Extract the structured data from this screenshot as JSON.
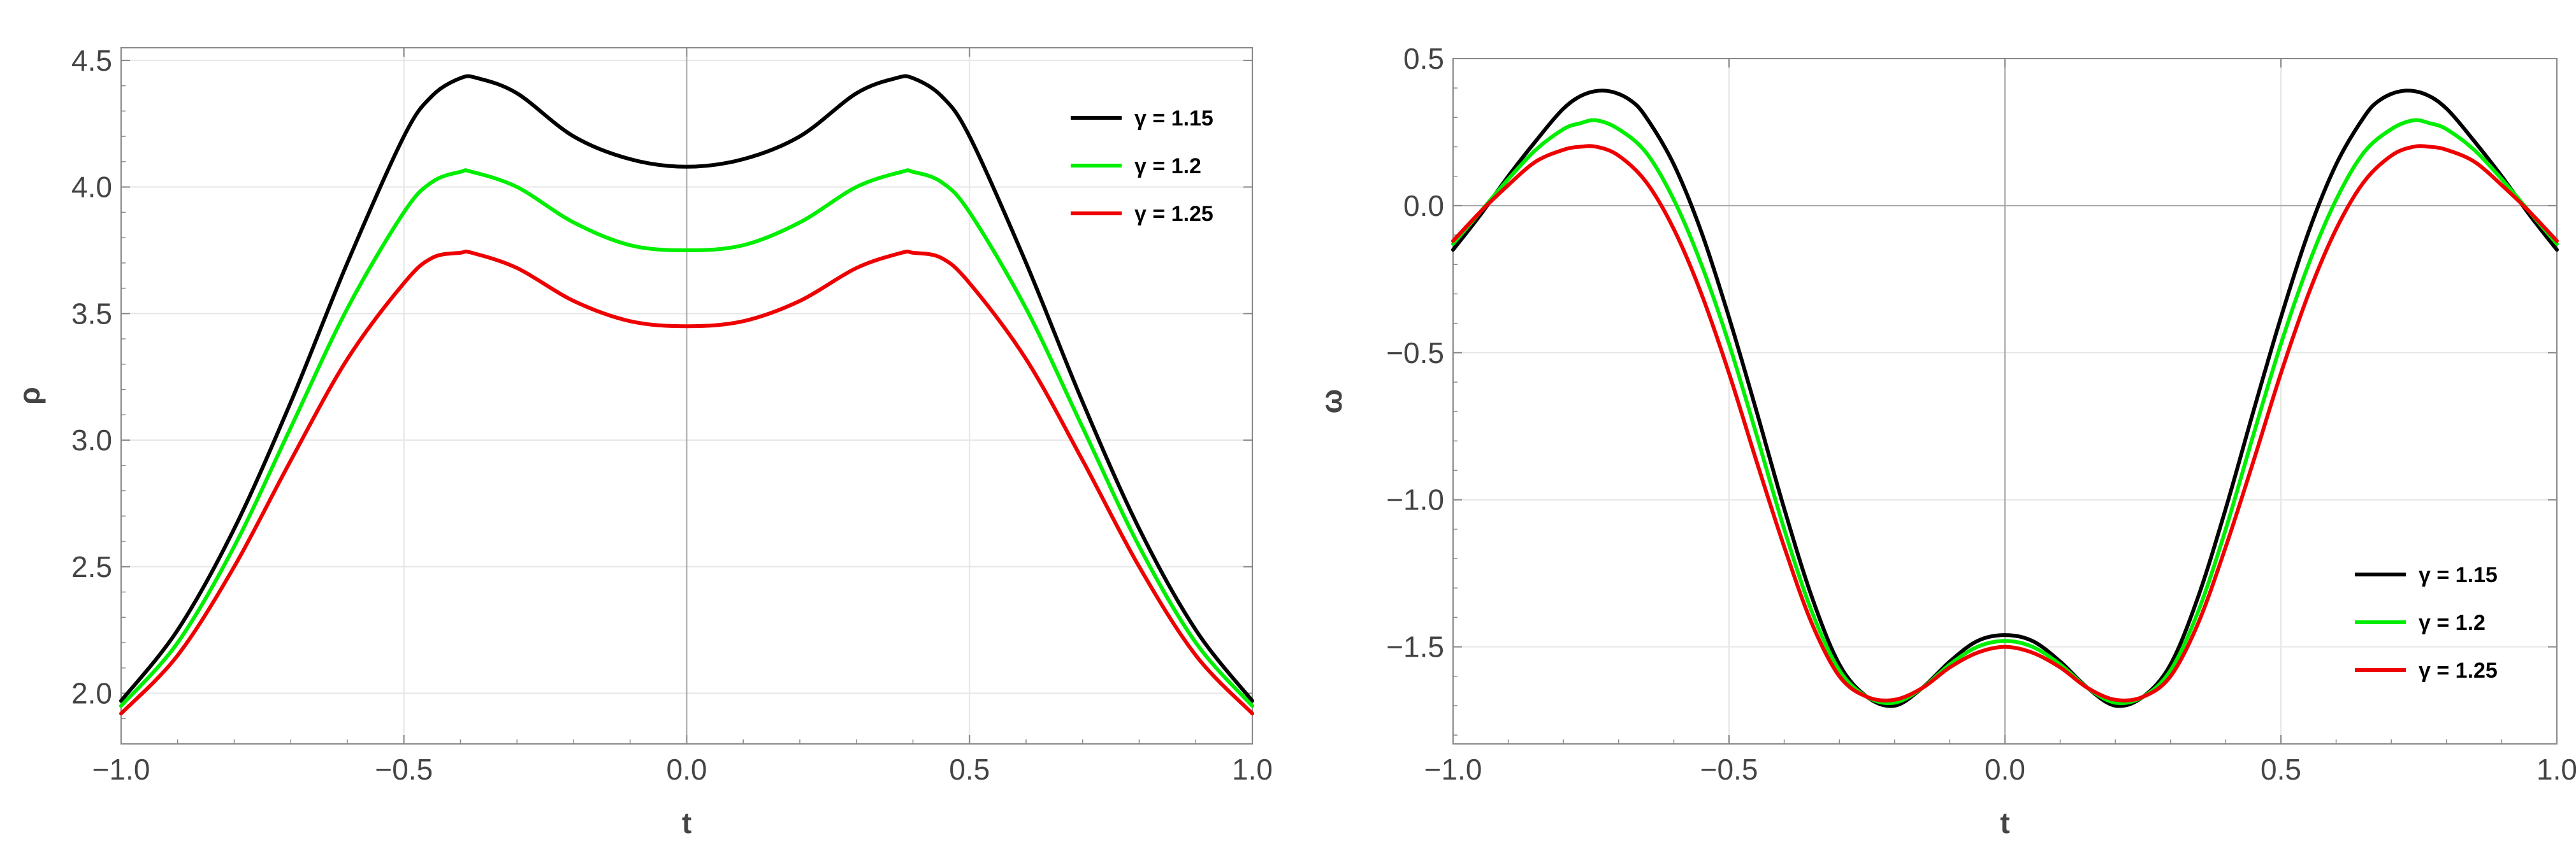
{
  "chart_data": [
    {
      "type": "line",
      "title": "",
      "xlabel": "t",
      "ylabel": "ρ",
      "xlim": [
        -1.0,
        1.0
      ],
      "ylim": [
        1.8,
        4.55
      ],
      "xticks": [
        "−1.0",
        "−0.5",
        "0.0",
        "0.5",
        "1.0"
      ],
      "yticks": [
        "2.0",
        "2.5",
        "3.0",
        "3.5",
        "4.0",
        "4.5"
      ],
      "grid": true,
      "legend_position": "top-right",
      "series": [
        {
          "name": "γ = 1.15",
          "color": "#000000",
          "x": [
            -1.0,
            -0.9,
            -0.8,
            -0.7,
            -0.6,
            -0.5,
            -0.45,
            -0.4,
            -0.37,
            -0.3,
            -0.2,
            -0.1,
            0.0,
            0.1,
            0.2,
            0.3,
            0.37,
            0.4,
            0.45,
            0.5,
            0.6,
            0.7,
            0.8,
            0.9,
            1.0
          ],
          "y": [
            1.97,
            2.25,
            2.65,
            3.15,
            3.7,
            4.2,
            4.36,
            4.43,
            4.43,
            4.37,
            4.2,
            4.11,
            4.08,
            4.11,
            4.2,
            4.37,
            4.43,
            4.43,
            4.36,
            4.2,
            3.7,
            3.15,
            2.65,
            2.25,
            1.97
          ]
        },
        {
          "name": "γ = 1.2",
          "color": "#00ee00",
          "x": [
            -1.0,
            -0.9,
            -0.8,
            -0.7,
            -0.6,
            -0.5,
            -0.45,
            -0.4,
            -0.38,
            -0.3,
            -0.2,
            -0.1,
            0.0,
            0.1,
            0.2,
            0.3,
            0.38,
            0.4,
            0.45,
            0.5,
            0.6,
            0.7,
            0.8,
            0.9,
            1.0
          ],
          "y": [
            1.95,
            2.2,
            2.58,
            3.05,
            3.52,
            3.9,
            4.02,
            4.06,
            4.06,
            4.0,
            3.86,
            3.77,
            3.75,
            3.77,
            3.86,
            4.0,
            4.06,
            4.06,
            4.02,
            3.9,
            3.52,
            3.05,
            2.58,
            2.2,
            1.95
          ]
        },
        {
          "name": "γ = 1.25",
          "color": "#ee0000",
          "x": [
            -1.0,
            -0.9,
            -0.8,
            -0.7,
            -0.6,
            -0.5,
            -0.45,
            -0.4,
            -0.38,
            -0.3,
            -0.2,
            -0.1,
            0.0,
            0.1,
            0.2,
            0.3,
            0.38,
            0.4,
            0.45,
            0.5,
            0.6,
            0.7,
            0.8,
            0.9,
            1.0
          ],
          "y": [
            1.92,
            2.15,
            2.5,
            2.92,
            3.32,
            3.62,
            3.72,
            3.74,
            3.74,
            3.68,
            3.55,
            3.47,
            3.45,
            3.47,
            3.55,
            3.68,
            3.74,
            3.74,
            3.72,
            3.62,
            3.32,
            2.92,
            2.5,
            2.15,
            1.92
          ]
        }
      ]
    },
    {
      "type": "line",
      "title": "",
      "xlabel": "t",
      "ylabel": "ω",
      "xlim": [
        -1.0,
        1.0
      ],
      "ylim": [
        -1.83,
        0.5
      ],
      "xticks": [
        "−1.0",
        "−0.5",
        "0.0",
        "0.5",
        "1.0"
      ],
      "yticks": [
        "−1.5",
        "−1.0",
        "−0.5",
        "0.0",
        "0.5"
      ],
      "grid": true,
      "legend_position": "bottom-right",
      "series": [
        {
          "name": "γ = 1.15",
          "color": "#000000",
          "x": [
            -1.0,
            -0.95,
            -0.9,
            -0.85,
            -0.8,
            -0.76,
            -0.72,
            -0.68,
            -0.65,
            -0.6,
            -0.55,
            -0.5,
            -0.45,
            -0.4,
            -0.35,
            -0.3,
            -0.25,
            -0.2,
            -0.15,
            -0.1,
            -0.05,
            0.0,
            0.05,
            0.1,
            0.15,
            0.2,
            0.25,
            0.3,
            0.35,
            0.4,
            0.45,
            0.5,
            0.55,
            0.6,
            0.65,
            0.68,
            0.72,
            0.76,
            0.8,
            0.85,
            0.9,
            0.95,
            1.0
          ],
          "y": [
            -0.15,
            -0.03,
            0.1,
            0.22,
            0.33,
            0.38,
            0.39,
            0.36,
            0.3,
            0.14,
            -0.09,
            -0.38,
            -0.7,
            -1.03,
            -1.33,
            -1.56,
            -1.67,
            -1.7,
            -1.64,
            -1.55,
            -1.48,
            -1.46,
            -1.48,
            -1.55,
            -1.64,
            -1.7,
            -1.67,
            -1.56,
            -1.33,
            -1.03,
            -0.7,
            -0.38,
            -0.09,
            0.14,
            0.3,
            0.36,
            0.39,
            0.38,
            0.33,
            0.22,
            0.1,
            -0.03,
            -0.15
          ]
        },
        {
          "name": "γ = 1.2",
          "color": "#00ee00",
          "x": [
            -1.0,
            -0.95,
            -0.9,
            -0.85,
            -0.8,
            -0.77,
            -0.74,
            -0.7,
            -0.65,
            -0.6,
            -0.55,
            -0.5,
            -0.45,
            -0.4,
            -0.35,
            -0.3,
            -0.25,
            -0.2,
            -0.15,
            -0.1,
            -0.05,
            0.0,
            0.05,
            0.1,
            0.15,
            0.2,
            0.25,
            0.3,
            0.35,
            0.4,
            0.45,
            0.5,
            0.55,
            0.6,
            0.65,
            0.7,
            0.74,
            0.77,
            0.8,
            0.85,
            0.9,
            0.95,
            1.0
          ],
          "y": [
            -0.13,
            -0.02,
            0.09,
            0.19,
            0.26,
            0.28,
            0.29,
            0.26,
            0.18,
            0.02,
            -0.2,
            -0.47,
            -0.78,
            -1.1,
            -1.38,
            -1.58,
            -1.67,
            -1.69,
            -1.64,
            -1.56,
            -1.5,
            -1.48,
            -1.5,
            -1.56,
            -1.64,
            -1.69,
            -1.67,
            -1.58,
            -1.38,
            -1.1,
            -0.78,
            -0.47,
            -0.2,
            0.02,
            0.18,
            0.26,
            0.29,
            0.28,
            0.26,
            0.19,
            0.09,
            -0.02,
            -0.13
          ]
        },
        {
          "name": "γ = 1.25",
          "color": "#ee0000",
          "x": [
            -1.0,
            -0.95,
            -0.9,
            -0.85,
            -0.8,
            -0.77,
            -0.74,
            -0.7,
            -0.65,
            -0.6,
            -0.55,
            -0.5,
            -0.45,
            -0.4,
            -0.35,
            -0.3,
            -0.25,
            -0.2,
            -0.15,
            -0.1,
            -0.05,
            0.0,
            0.05,
            0.1,
            0.15,
            0.2,
            0.25,
            0.3,
            0.35,
            0.4,
            0.45,
            0.5,
            0.55,
            0.6,
            0.65,
            0.7,
            0.74,
            0.77,
            0.8,
            0.85,
            0.9,
            0.95,
            1.0
          ],
          "y": [
            -0.12,
            -0.02,
            0.07,
            0.15,
            0.19,
            0.2,
            0.2,
            0.17,
            0.08,
            -0.08,
            -0.3,
            -0.57,
            -0.87,
            -1.16,
            -1.42,
            -1.6,
            -1.67,
            -1.68,
            -1.64,
            -1.57,
            -1.52,
            -1.5,
            -1.52,
            -1.57,
            -1.64,
            -1.68,
            -1.67,
            -1.6,
            -1.42,
            -1.16,
            -0.87,
            -0.57,
            -0.3,
            -0.08,
            0.08,
            0.17,
            0.2,
            0.2,
            0.19,
            0.15,
            0.07,
            -0.02,
            -0.12
          ]
        }
      ]
    }
  ]
}
